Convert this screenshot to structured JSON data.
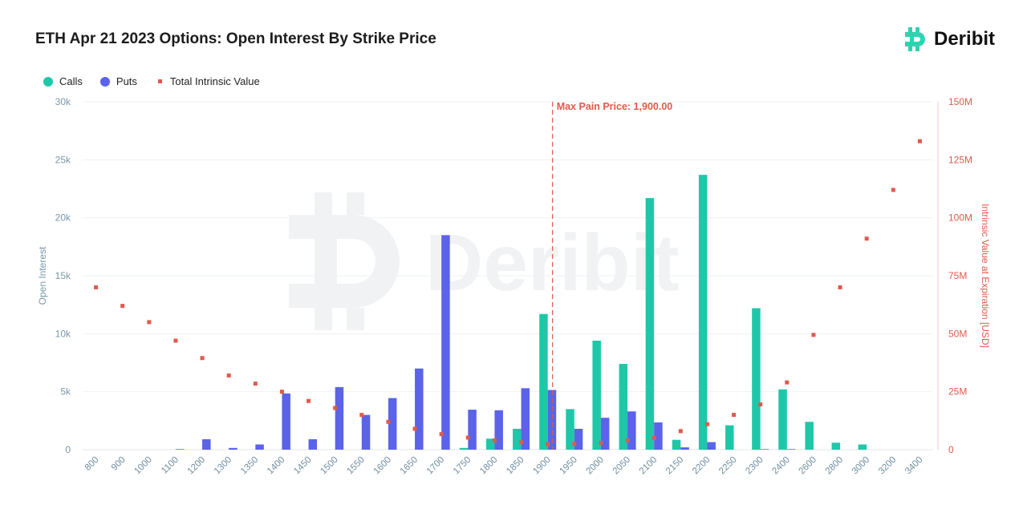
{
  "colors": {
    "calls": "#1fc7a8",
    "puts": "#5b63ea",
    "intrinsic": "#e05a4c",
    "left_axis": "#7a98a8",
    "right_axis": "#e05a4c",
    "x_axis": "#6f8ea0",
    "grid": "#eef1f3",
    "brand": "#2dd4b0"
  },
  "brand": {
    "name": "Deribit",
    "icon": "deribit-logo-icon",
    "watermark": "Deribit"
  },
  "chart_data": {
    "type": "bar",
    "title": "ETH Apr 21 2023 Options: Open Interest By Strike Price",
    "xlabel": "",
    "ylabel": "Open Interest",
    "y2label": "Intrinsic Value at Expiration [USD]",
    "ylim": [
      0,
      30000
    ],
    "y2lim": [
      0,
      150000000
    ],
    "yticks": [
      "0",
      "5k",
      "10k",
      "15k",
      "20k",
      "25k",
      "30k"
    ],
    "y2ticks": [
      "0",
      "25M",
      "50M",
      "75M",
      "100M",
      "125M",
      "150M"
    ],
    "grid": true,
    "legend": "top-left",
    "categories": [
      "800",
      "900",
      "1000",
      "1100",
      "1200",
      "1300",
      "1350",
      "1400",
      "1450",
      "1500",
      "1550",
      "1600",
      "1650",
      "1700",
      "1750",
      "1800",
      "1850",
      "1900",
      "1950",
      "2000",
      "2050",
      "2100",
      "2150",
      "2200",
      "2250",
      "2300",
      "2400",
      "2600",
      "2800",
      "3000",
      "3200",
      "3400"
    ],
    "series": [
      {
        "name": "Calls",
        "kind": "bar",
        "axis": "left",
        "values": [
          0,
          0,
          0,
          0,
          0,
          0,
          0,
          0,
          0,
          0,
          0,
          0,
          0,
          0,
          150,
          950,
          1800,
          11700,
          3500,
          9400,
          7400,
          21700,
          850,
          23700,
          2100,
          12200,
          5200,
          2400,
          600,
          450,
          0,
          0
        ]
      },
      {
        "name": "Puts",
        "kind": "bar",
        "axis": "left",
        "values": [
          0,
          0,
          0,
          50,
          900,
          150,
          450,
          4850,
          900,
          5400,
          3000,
          4450,
          7000,
          18500,
          3450,
          3400,
          5300,
          5150,
          1800,
          2750,
          3300,
          2350,
          200,
          650,
          0,
          50,
          50,
          0,
          0,
          0,
          0,
          0
        ]
      },
      {
        "name": "Total Intrinsic Value",
        "kind": "point",
        "axis": "right",
        "values": [
          70000000,
          62000000,
          55000000,
          47000000,
          39500000,
          32000000,
          28500000,
          25000000,
          21000000,
          18000000,
          15000000,
          12000000,
          9000000,
          6700000,
          5200000,
          4000000,
          3200000,
          2300000,
          2500000,
          3000000,
          4000000,
          5000000,
          8000000,
          11000000,
          15000000,
          19500000,
          29000000,
          49500000,
          70000000,
          91000000,
          112000000,
          133000000
        ]
      }
    ],
    "annotations": [
      {
        "label": "Max Pain Price: 1,900.00",
        "x": "1900"
      }
    ]
  }
}
